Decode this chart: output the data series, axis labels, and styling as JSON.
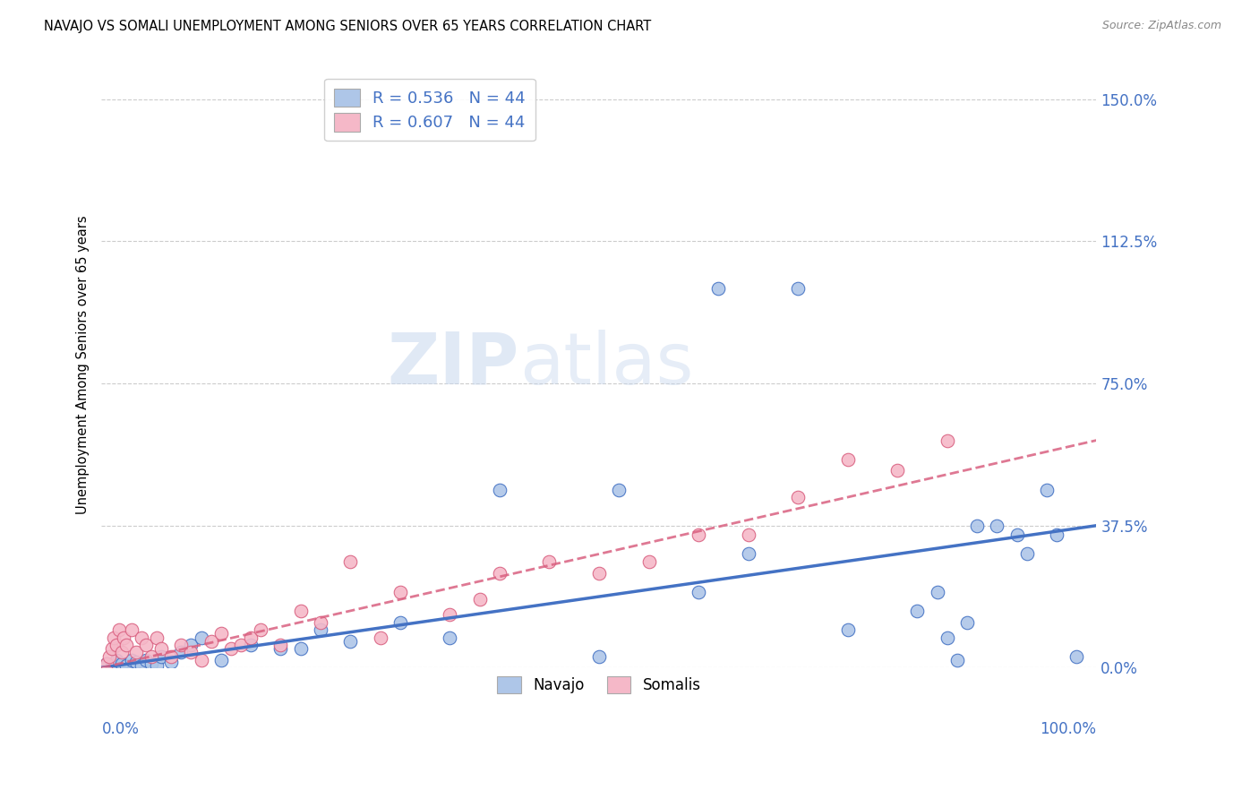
{
  "title": "NAVAJO VS SOMALI UNEMPLOYMENT AMONG SENIORS OVER 65 YEARS CORRELATION CHART",
  "source": "Source: ZipAtlas.com",
  "ylabel": "Unemployment Among Seniors over 65 years",
  "ytick_values": [
    0,
    37.5,
    75.0,
    112.5,
    150.0
  ],
  "xlim": [
    0,
    100
  ],
  "ylim": [
    0,
    160
  ],
  "navajo_R": "0.536",
  "navajo_N": "44",
  "somali_R": "0.607",
  "somali_N": "44",
  "navajo_color": "#aec6e8",
  "somali_color": "#f5b8c8",
  "navajo_line_color": "#4472c4",
  "somali_line_color": "#d96080",
  "legend_label_navajo": "Navajo",
  "legend_label_somali": "Somalis",
  "watermark_zip": "ZIP",
  "watermark_atlas": "atlas",
  "navajo_x": [
    0.5,
    1.0,
    1.5,
    2.0,
    2.5,
    3.0,
    3.5,
    4.0,
    4.5,
    5.0,
    5.5,
    6.0,
    7.0,
    8.0,
    9.0,
    10.0,
    12.0,
    15.0,
    18.0,
    20.0,
    22.0,
    25.0,
    30.0,
    35.0,
    40.0,
    50.0,
    52.0,
    60.0,
    62.0,
    65.0,
    70.0,
    75.0,
    82.0,
    84.0,
    85.0,
    86.0,
    87.0,
    88.0,
    90.0,
    92.0,
    93.0,
    95.0,
    96.0,
    98.0
  ],
  "navajo_y": [
    1.0,
    0.5,
    2.0,
    1.0,
    0.5,
    2.0,
    1.5,
    0.5,
    2.0,
    1.0,
    0.5,
    3.0,
    1.5,
    4.0,
    6.0,
    8.0,
    2.0,
    6.0,
    5.0,
    5.0,
    10.0,
    7.0,
    12.0,
    8.0,
    47.0,
    3.0,
    47.0,
    20.0,
    100.0,
    30.0,
    100.0,
    10.0,
    15.0,
    20.0,
    8.0,
    2.0,
    12.0,
    37.5,
    37.5,
    35.0,
    30.0,
    47.0,
    35.0,
    3.0
  ],
  "somali_x": [
    0.5,
    0.8,
    1.0,
    1.2,
    1.5,
    1.8,
    2.0,
    2.2,
    2.5,
    3.0,
    3.5,
    4.0,
    4.5,
    5.0,
    5.5,
    6.0,
    7.0,
    8.0,
    9.0,
    10.0,
    11.0,
    12.0,
    13.0,
    14.0,
    15.0,
    16.0,
    18.0,
    20.0,
    22.0,
    25.0,
    28.0,
    30.0,
    35.0,
    38.0,
    40.0,
    45.0,
    50.0,
    55.0,
    60.0,
    65.0,
    70.0,
    75.0,
    80.0,
    85.0
  ],
  "somali_y": [
    1.0,
    3.0,
    5.0,
    8.0,
    6.0,
    10.0,
    4.0,
    8.0,
    6.0,
    10.0,
    4.0,
    8.0,
    6.0,
    3.0,
    8.0,
    5.0,
    3.0,
    6.0,
    4.0,
    2.0,
    7.0,
    9.0,
    5.0,
    6.0,
    8.0,
    10.0,
    6.0,
    15.0,
    12.0,
    28.0,
    8.0,
    20.0,
    14.0,
    18.0,
    25.0,
    28.0,
    25.0,
    28.0,
    35.0,
    35.0,
    45.0,
    55.0,
    52.0,
    60.0
  ],
  "navajo_line_x0": 0,
  "navajo_line_x1": 100,
  "navajo_line_y0": 0,
  "navajo_line_y1": 37.5,
  "somali_line_x0": 0,
  "somali_line_x1": 100,
  "somali_line_y0": 0,
  "somali_line_y1": 60.0
}
